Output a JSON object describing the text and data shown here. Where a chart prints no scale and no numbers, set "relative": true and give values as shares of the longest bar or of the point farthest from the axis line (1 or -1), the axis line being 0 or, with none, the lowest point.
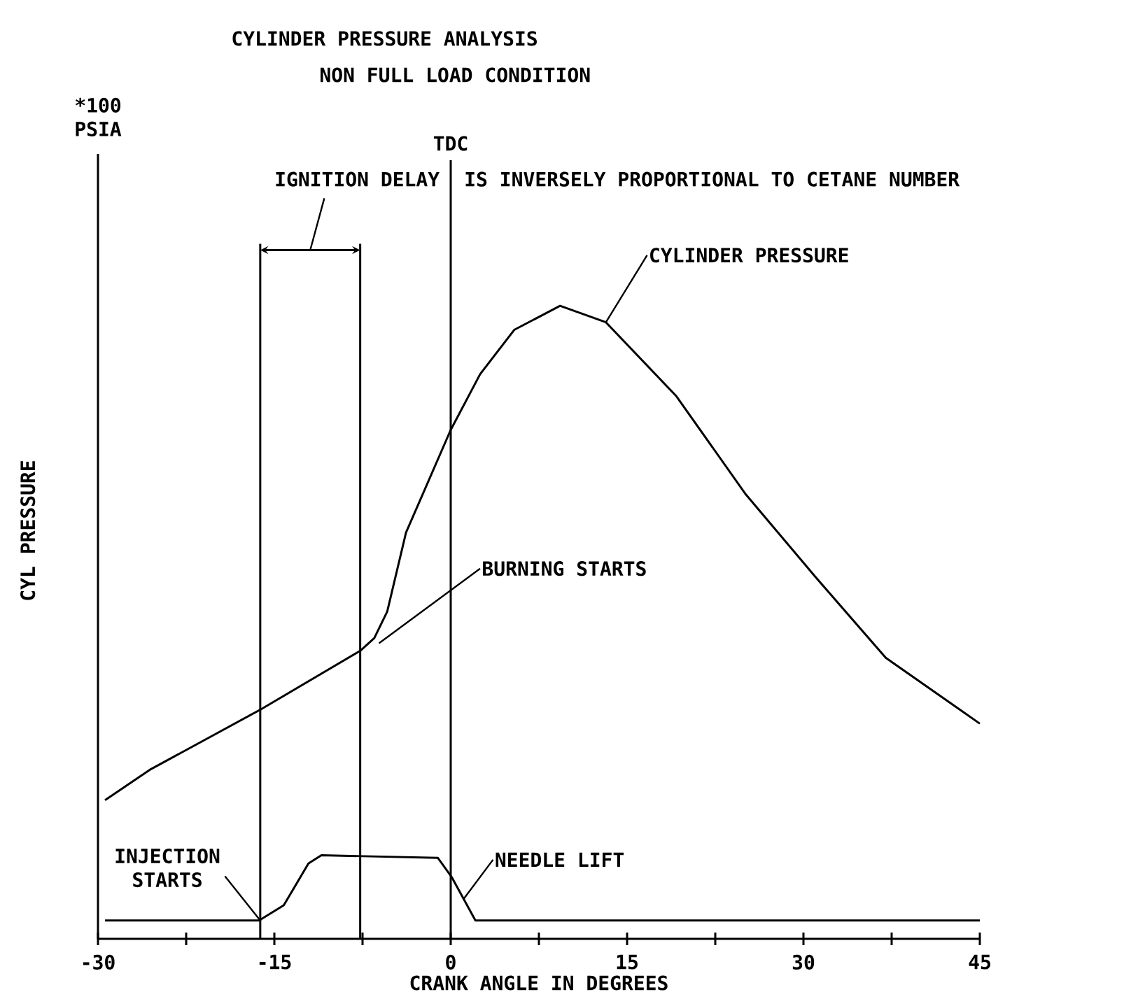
{
  "chart_data": {
    "type": "line",
    "title": "CYLINDER PRESSURE ANALYSIS",
    "subtitle": "NON FULL LOAD CONDITION",
    "xlabel": "CRANK ANGLE IN DEGREES",
    "ylabel": "CYL PRESSURE",
    "relative": true,
    "xlim": [
      -30,
      45
    ],
    "xticks": [
      -30,
      {
        "value": -22.5,
        "label": null
      },
      -15,
      {
        "value": -7.5,
        "label": null
      },
      0,
      {
        "value": 7.5,
        "label": null
      },
      15,
      {
        "value": 22.5,
        "label": null
      },
      30,
      {
        "value": 37.5,
        "label": null
      },
      45
    ],
    "series": [
      {
        "name": "CYLINDER PRESSURE",
        "color": "#000000",
        "x": [
          -29.4,
          -25.6,
          -16.2,
          -7.7,
          -6.5,
          -5.4,
          -3.8,
          -2.6,
          0,
          2.5,
          5.4,
          9.3,
          13.2,
          19.2,
          25.1,
          31.1,
          37.0,
          45
        ],
        "values": [
          0.219,
          0.267,
          0.362,
          0.455,
          0.475,
          0.517,
          0.642,
          0.693,
          0.804,
          0.892,
          0.962,
          1.0,
          0.974,
          0.857,
          0.702,
          0.57,
          0.444,
          0.34
        ]
      },
      {
        "name": "NEEDLE LIFT",
        "color": "#000000",
        "x": [
          -29.4,
          -16.3,
          -14.2,
          -12.1,
          -11.0,
          -1.1,
          0.1,
          2.1,
          45
        ],
        "values": [
          0.029,
          0.029,
          0.053,
          0.119,
          0.132,
          0.128,
          0.097,
          0.029,
          0.029
        ]
      }
    ],
    "ref_lines": [
      {
        "axis": "x",
        "value": -16.2,
        "color": "#000000"
      },
      {
        "axis": "x",
        "value": -7.7,
        "color": "#000000"
      },
      {
        "axis": "x",
        "value": 0,
        "label": "TDC",
        "color": "#000000"
      }
    ],
    "annotations": [
      "*100 PSIA",
      "IGNITION DELAY",
      "IS INVERSELY PROPORTIONAL TO CETANE NUMBER",
      {
        "text": "BURNING STARTS",
        "x": -6.5,
        "y": 0.475
      },
      {
        "text": "INJECTION STARTS",
        "x": -16.2,
        "y": 0.029
      }
    ],
    "legend": false,
    "grid": false,
    "marker": "none",
    "line_style": "solid"
  }
}
